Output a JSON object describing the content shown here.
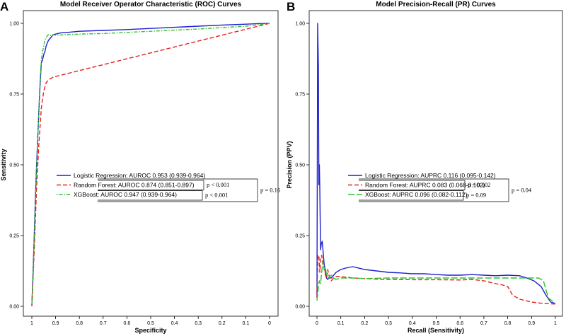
{
  "chart_data": [
    {
      "type": "line",
      "panel_letter": "A",
      "title": "Model Receiver Operator Characteristic (ROC) Curves",
      "xlabel": "Specificity",
      "ylabel": "Sensitivity",
      "xlim": [
        1,
        0
      ],
      "ylim": [
        0,
        1
      ],
      "xticks": [
        "1",
        "0.9",
        "0.8",
        "0.7",
        "0.6",
        "0.5",
        "0.4",
        "0.3",
        "0.2",
        "0.1",
        "0"
      ],
      "yticks": [
        "0.00",
        "0.25",
        "0.50",
        "0.75",
        "1.00"
      ],
      "colors": [
        "#1f1fd0",
        "#e82020",
        "#2ec22e"
      ],
      "series": [
        {
          "name": "Logistic Regression",
          "legend_label": "Logistic Regression: AUROC 0.953 (0.939-0.964)",
          "color": "#1f1fd0",
          "dash": "solid",
          "x": [
            1,
            0.995,
            0.99,
            0.985,
            0.98,
            0.975,
            0.97,
            0.965,
            0.96,
            0.955,
            0.95,
            0.945,
            0.94,
            0.935,
            0.93,
            0.925,
            0.92,
            0.915,
            0.91,
            0.9,
            0.88,
            0.85,
            0.8,
            0.7,
            0.6,
            0.5,
            0.4,
            0.3,
            0.2,
            0.1,
            0.05,
            0
          ],
          "y": [
            0.0,
            0.12,
            0.25,
            0.38,
            0.5,
            0.6,
            0.7,
            0.79,
            0.86,
            0.87,
            0.89,
            0.9,
            0.92,
            0.93,
            0.94,
            0.945,
            0.95,
            0.955,
            0.96,
            0.962,
            0.966,
            0.968,
            0.972,
            0.975,
            0.978,
            0.982,
            0.986,
            0.99,
            0.994,
            0.997,
            0.999,
            1.0
          ]
        },
        {
          "name": "Random Forest",
          "legend_label": "Random Forest: AUROC 0.874 (0.851-0.897)",
          "color": "#e82020",
          "dash": "dashed",
          "x": [
            1,
            0.99,
            0.98,
            0.97,
            0.96,
            0.95,
            0.94,
            0.93,
            0.92,
            0.91,
            0.0
          ],
          "y": [
            0.0,
            0.2,
            0.42,
            0.58,
            0.7,
            0.76,
            0.79,
            0.8,
            0.805,
            0.81,
            1.0
          ]
        },
        {
          "name": "XGBoost",
          "legend_label": "XGBoost: AUROC 0.947 (0.939-0.964)",
          "color": "#2ec22e",
          "dash": "dotdash",
          "x": [
            1,
            0.995,
            0.99,
            0.985,
            0.98,
            0.975,
            0.97,
            0.965,
            0.96,
            0.955,
            0.95,
            0.945,
            0.94,
            0.935,
            0.93,
            0.92,
            0.91,
            0.9,
            0.85,
            0.8,
            0.7,
            0.6,
            0.5,
            0.4,
            0.3,
            0.2,
            0.1,
            0.05,
            0
          ],
          "y": [
            0.0,
            0.11,
            0.24,
            0.37,
            0.48,
            0.6,
            0.7,
            0.8,
            0.87,
            0.9,
            0.92,
            0.94,
            0.95,
            0.955,
            0.96,
            0.958,
            0.96,
            0.958,
            0.96,
            0.962,
            0.964,
            0.968,
            0.972,
            0.976,
            0.98,
            0.985,
            0.99,
            0.995,
            1.0
          ]
        }
      ],
      "legend_position": "center-left",
      "pvalues": [
        {
          "label": "p < 0.001",
          "pair": "Logistic Regression vs Random Forest"
        },
        {
          "label": "p < 0.001",
          "pair": "Random Forest vs XGBoost"
        },
        {
          "label": "p = 0.16",
          "pair": "Logistic Regression vs XGBoost"
        }
      ]
    },
    {
      "type": "line",
      "panel_letter": "B",
      "title": "Model Precision-Recall (PR) Curves",
      "xlabel": "Recall (Sensitivity)",
      "ylabel": "Precision (PPV)",
      "xlim": [
        0,
        1
      ],
      "ylim": [
        0,
        1
      ],
      "xticks": [
        "0",
        "0.1",
        "0.2",
        "0.3",
        "0.4",
        "0.5",
        "0.6",
        "0.7",
        "0.8",
        "0.9",
        "1"
      ],
      "yticks": [
        "0.00",
        "0.25",
        "0.50",
        "0.75",
        "1.00"
      ],
      "colors": [
        "#1f1fd0",
        "#e82020",
        "#2ec22e"
      ],
      "series": [
        {
          "name": "Logistic Regression",
          "legend_label": "Logistic Regression: AUPRC 0.116 (0.095-0.142)",
          "color": "#1f1fd0",
          "dash": "solid",
          "x": [
            0.0,
            0.003,
            0.006,
            0.008,
            0.01,
            0.012,
            0.015,
            0.018,
            0.022,
            0.026,
            0.03,
            0.035,
            0.04,
            0.045,
            0.05,
            0.06,
            0.07,
            0.08,
            0.1,
            0.12,
            0.15,
            0.2,
            0.25,
            0.3,
            0.35,
            0.4,
            0.45,
            0.5,
            0.55,
            0.6,
            0.65,
            0.7,
            0.75,
            0.8,
            0.85,
            0.88,
            0.91,
            0.94,
            0.96,
            0.98,
            1.0
          ],
          "y": [
            0.03,
            1.0,
            0.85,
            0.43,
            0.5,
            0.42,
            0.2,
            0.22,
            0.23,
            0.19,
            0.15,
            0.12,
            0.1,
            0.095,
            0.1,
            0.1,
            0.11,
            0.12,
            0.13,
            0.135,
            0.14,
            0.13,
            0.125,
            0.12,
            0.118,
            0.115,
            0.115,
            0.112,
            0.11,
            0.11,
            0.112,
            0.11,
            0.108,
            0.11,
            0.108,
            0.1,
            0.09,
            0.07,
            0.04,
            0.015,
            0.01
          ]
        },
        {
          "name": "Random Forest",
          "legend_label": "Random Forest: AUPRC 0.083 (0.068-0.102)",
          "color": "#e82020",
          "dash": "dashed",
          "x": [
            0.0,
            0.004,
            0.008,
            0.012,
            0.016,
            0.02,
            0.024,
            0.028,
            0.032,
            0.036,
            0.04,
            0.045,
            0.05,
            0.06,
            0.07,
            0.08,
            0.1,
            0.15,
            0.2,
            0.25,
            0.3,
            0.4,
            0.5,
            0.6,
            0.65,
            0.7,
            0.75,
            0.78,
            0.8,
            0.82,
            0.85,
            0.9,
            0.95,
            1.0
          ],
          "y": [
            0.03,
            0.18,
            0.18,
            0.12,
            0.17,
            0.18,
            0.15,
            0.14,
            0.13,
            0.11,
            0.1,
            0.13,
            0.11,
            0.09,
            0.1,
            0.105,
            0.105,
            0.1,
            0.098,
            0.096,
            0.095,
            0.094,
            0.094,
            0.093,
            0.095,
            0.09,
            0.08,
            0.075,
            0.07,
            0.04,
            0.025,
            0.015,
            0.01,
            0.008
          ]
        },
        {
          "name": "XGBoost",
          "legend_label": "XGBoost: AUPRC 0.096 (0.082-0.112)",
          "color": "#2ec22e",
          "dash": "longdash",
          "x": [
            0.0,
            0.005,
            0.01,
            0.015,
            0.02,
            0.025,
            0.03,
            0.035,
            0.04,
            0.05,
            0.06,
            0.07,
            0.08,
            0.1,
            0.15,
            0.2,
            0.3,
            0.4,
            0.5,
            0.6,
            0.7,
            0.8,
            0.85,
            0.9,
            0.93,
            0.95,
            0.97,
            1.0
          ],
          "y": [
            0.02,
            0.06,
            0.09,
            0.08,
            0.12,
            0.16,
            0.13,
            0.14,
            0.11,
            0.1,
            0.11,
            0.1,
            0.095,
            0.1,
            0.1,
            0.098,
            0.1,
            0.1,
            0.1,
            0.1,
            0.1,
            0.1,
            0.1,
            0.1,
            0.1,
            0.09,
            0.03,
            0.01
          ]
        }
      ],
      "legend_position": "center-right",
      "pvalues": [
        {
          "label": "p = 0.002",
          "pair": "Logistic Regression vs Random Forest"
        },
        {
          "label": "p = 0.09",
          "pair": "Random Forest vs XGBoost"
        },
        {
          "label": "p = 0.04",
          "pair": "Logistic Regression vs XGBoost"
        }
      ]
    }
  ]
}
